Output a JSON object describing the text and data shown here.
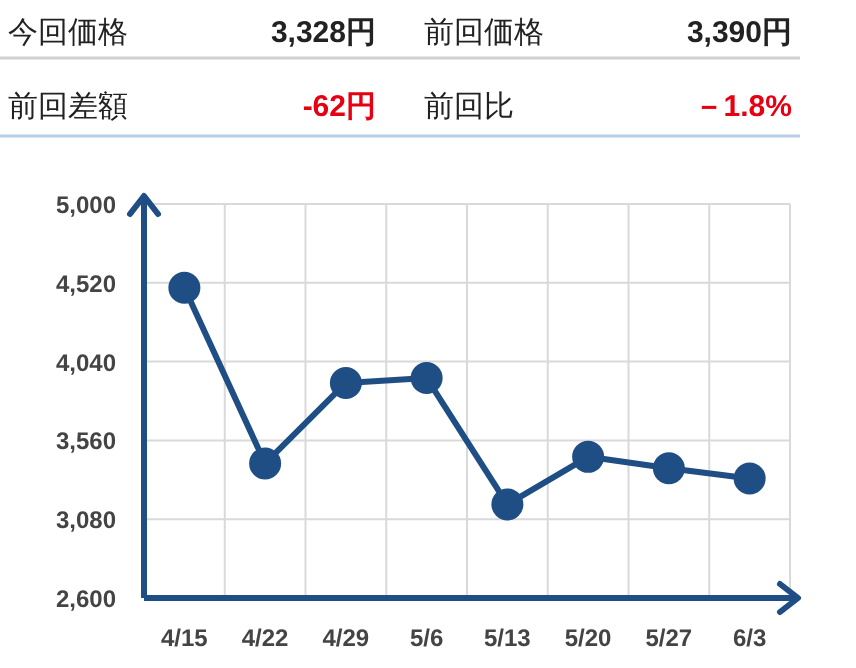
{
  "chart_data": {
    "type": "line",
    "annotations": [
      "今回価格",
      "3,328円",
      "前回価格",
      "3,390円",
      "前回差額",
      "-62円",
      "前回比",
      "－1.8%"
    ],
    "categories": [
      "4/15",
      "4/22",
      "4/29",
      "5/6",
      "5/13",
      "5/20",
      "5/27",
      "6/3"
    ],
    "series": [
      {
        "color": "#1f4e84",
        "values": [
          4490,
          3420,
          3910,
          3940,
          3170,
          3460,
          3390,
          3328
        ]
      }
    ],
    "ylim": [
      2600,
      5000
    ],
    "yticks": [
      {
        "value": 2600,
        "label": "2,600"
      },
      {
        "value": 3080,
        "label": "3,080"
      },
      {
        "value": 3560,
        "label": "3,560"
      },
      {
        "value": 4040,
        "label": "4,040"
      },
      {
        "value": 4520,
        "label": "4,520"
      },
      {
        "value": 5000,
        "label": "5,000"
      }
    ],
    "grid": true,
    "marker": "circle",
    "line_style": "solid"
  }
}
